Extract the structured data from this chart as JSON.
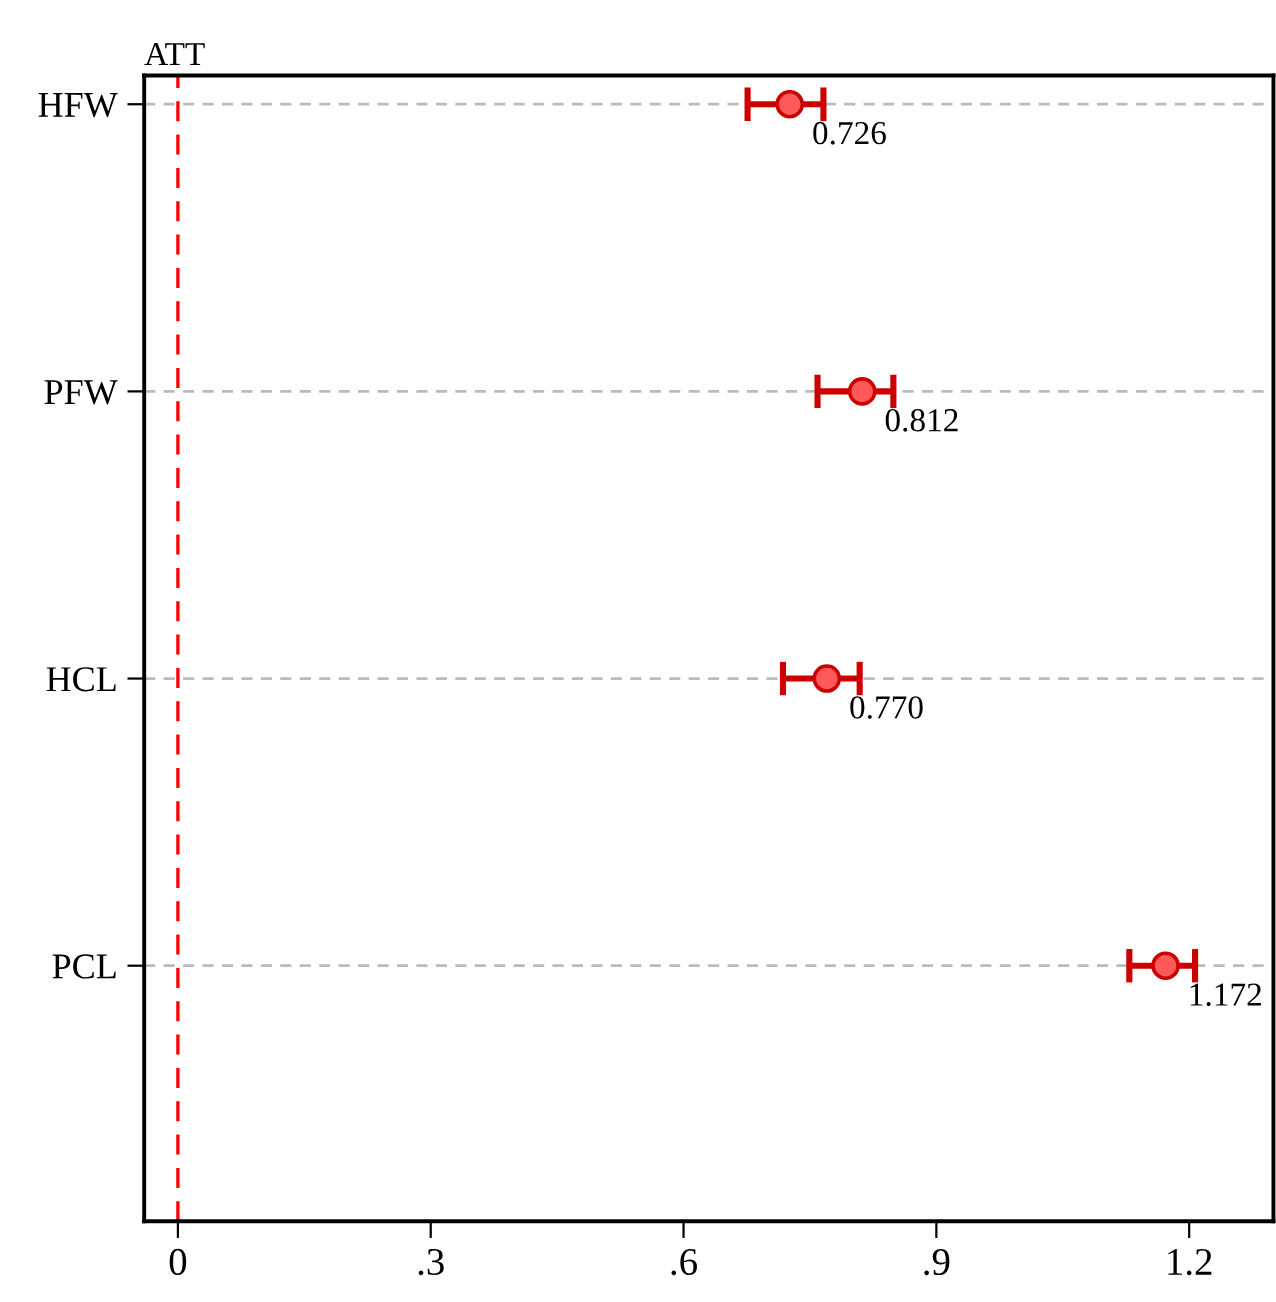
{
  "chart_data": {
    "type": "scatter",
    "orientation": "horizontal",
    "ylabel": "ATT",
    "categories": [
      "HFW",
      "PFW",
      "HCL",
      "PCL"
    ],
    "series": [
      {
        "color": "#ff5a5a",
        "values": [
          0.726,
          0.812,
          0.77,
          1.172
        ],
        "errors": [
          [
            0.676,
            0.766
          ],
          [
            0.759,
            0.849
          ],
          [
            0.718,
            0.809
          ],
          [
            1.129,
            1.207
          ]
        ],
        "value_labels": [
          "0.726",
          "0.812",
          "0.770",
          "1.172"
        ]
      }
    ],
    "xlim": [
      -0.04,
      1.3
    ],
    "xticks": [
      0,
      {
        "value": 0.3,
        "label": ".3"
      },
      {
        "value": 0.6,
        "label": ".6"
      },
      {
        "value": 0.9,
        "label": ".9"
      },
      {
        "value": 1.2,
        "label": "1.2"
      }
    ],
    "ref_lines": [
      {
        "axis": "x",
        "value": 0,
        "color": "#ff0000",
        "line_style": "dashed"
      }
    ],
    "grid": "y",
    "marker": "circle",
    "legend": false
  }
}
